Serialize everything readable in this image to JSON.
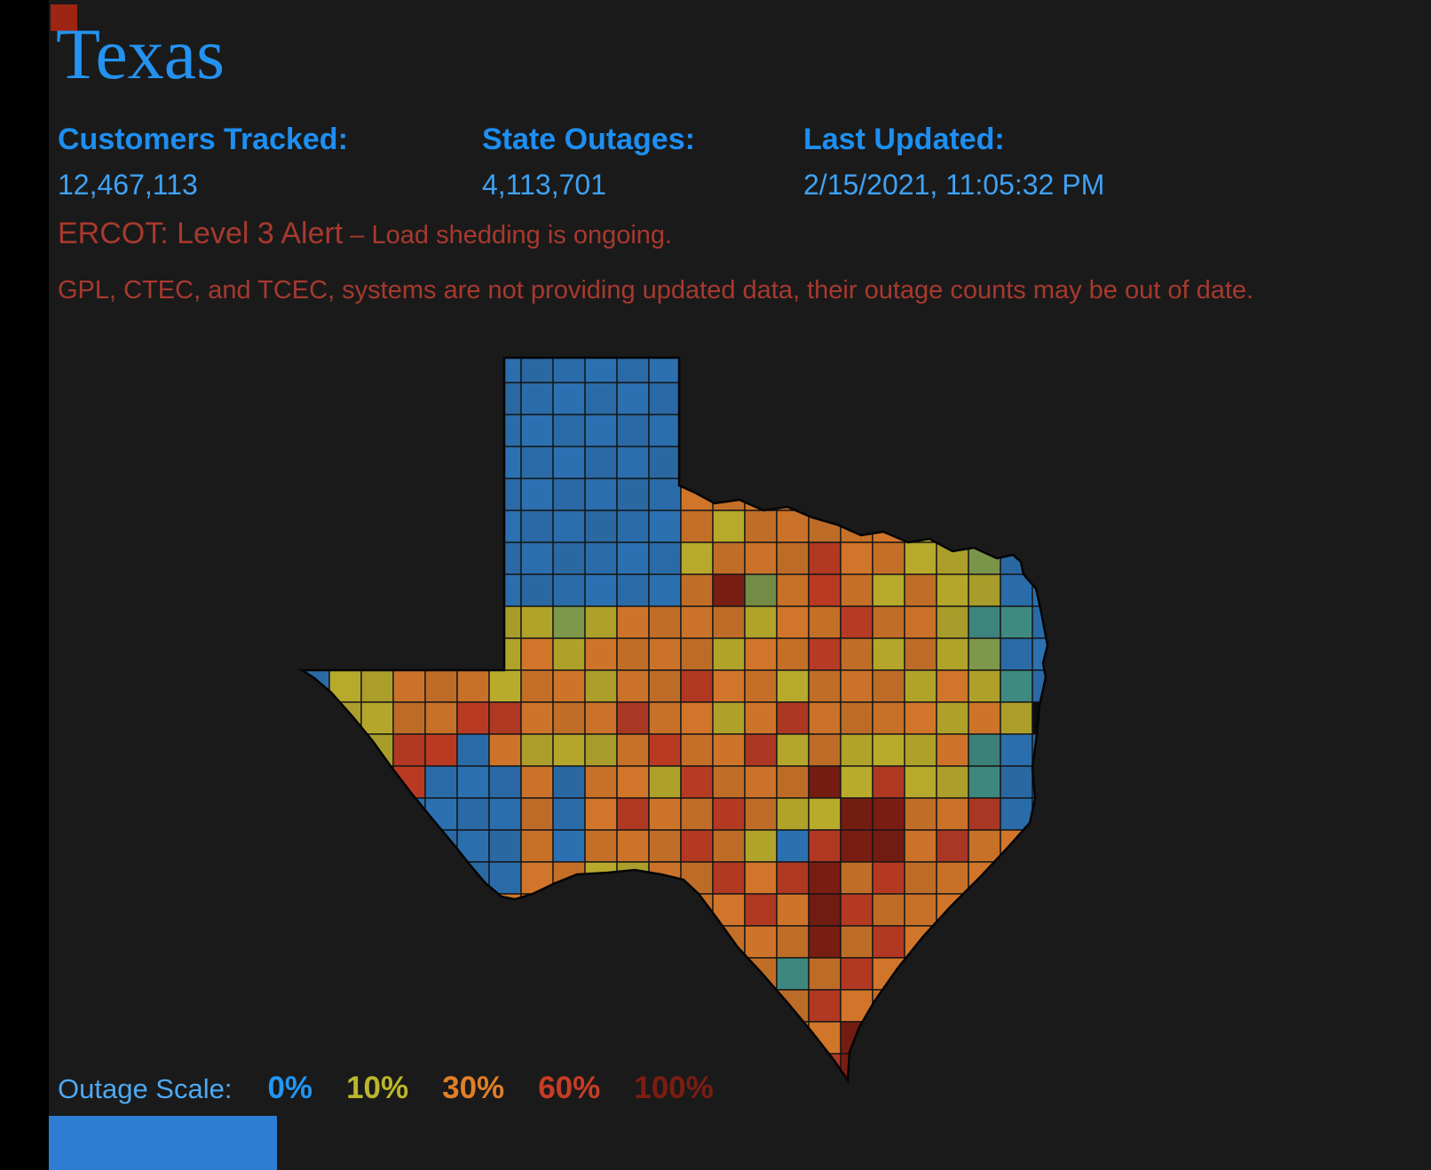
{
  "page": {
    "title": "Texas",
    "stats": [
      {
        "label": "Customers Tracked:",
        "value": "12,467,113"
      },
      {
        "label": "State Outages:",
        "value": "4,113,701"
      },
      {
        "label": "Last Updated:",
        "value": "2/15/2021, 11:05:32 PM"
      }
    ],
    "alert": {
      "headline": "ERCOT: Level 3 Alert",
      "headline_rest": " – Load shedding is ongoing.",
      "notice": "GPL, CTEC, and TCEC, systems are not providing updated data, their outage counts may be out of date."
    },
    "legend": {
      "label": "Outage Scale:",
      "stops": [
        {
          "label": "0%",
          "color": "#2196f3"
        },
        {
          "label": "10%",
          "color": "#bdb62b"
        },
        {
          "label": "30%",
          "color": "#e07f28"
        },
        {
          "label": "60%",
          "color": "#c63d25"
        },
        {
          "label": "100%",
          "color": "#7c1d12"
        }
      ]
    },
    "colors": {
      "background": "#1a1a1a",
      "title_blue": "#2492f0",
      "alert_red": "#a8392e"
    }
  },
  "chart_data": {
    "type": "heatmap",
    "title": "Texas county power outage choropleth",
    "legend_position": "bottom",
    "scale_stops": [
      "0%",
      "10%",
      "30%",
      "60%",
      "100%"
    ],
    "scale_colors": [
      "#2c73b5",
      "#bcae2c",
      "#d4772a",
      "#bd3b24",
      "#7c1d12"
    ]
  },
  "map": {
    "region": "Texas counties outage choropleth",
    "cell_size": 36,
    "palette": {
      "B": "#2c73b5",
      "Y": "#bcae2c",
      "O": "#d4772a",
      "R": "#bd3b24",
      "D": "#7c1d12",
      "T": "#3f8d84",
      "G": "#7f9b4c",
      "K": "#0d0d0d"
    },
    "grid": [
      "BBBBBBBBBBBBBBBBBBBBBBBB",
      "BBBBBBBBBBBBBBBBBBBBBBBB",
      "BBBBBBBBBBBBBBBBBBBBBBBB",
      "BBBBBBBBBBBBBBBBBBBBBBBB",
      "BBBBBBBBBBBBOOOOOOOOOOOO",
      "BBBBBBBBBBBBOYOOOOOYYYBB",
      "BBBBBBBBBBBBYOOOROOYYGBB",
      "BBBBBBBBBBBBODGOROYOYYBB",
      "YYYYYYYYGYOOOOYOOROOYTTB",
      "YYYYYYYOYOOOOYOOROYOYGBB",
      "BYYOOOYOOYOOROOYOOOYOYTB",
      "BYYOORROOOROOYOROOOOYOYK",
      "BYYRRBOYYYOROORYOYYYOTBB",
      "BBYRBBBOBOOYROOODYRYYTBB",
      "BBBBBBBOBOROOROYYDDOORBB",
      "BBBBBBBOBOOOROYBRDDOROOO",
      "BBBBBBBOOYYOORORDOROOOOO",
      "OOOOOOOOOOOYOORODROOOOOO",
      "OOOOOOOOOOORROOODOROOOOO",
      "OOOOOOOOOOOOOROTOROOOOOO",
      "OOOOOOOOOOOOOOOOROOOOOOO",
      "OOOOOOOOOOOOOOROODOOOOOO",
      "OOOOOOOOOOOOOOOORDOOOOOO",
      "OOOOOOOOOOOOOOOOODOOOOOO"
    ]
  }
}
